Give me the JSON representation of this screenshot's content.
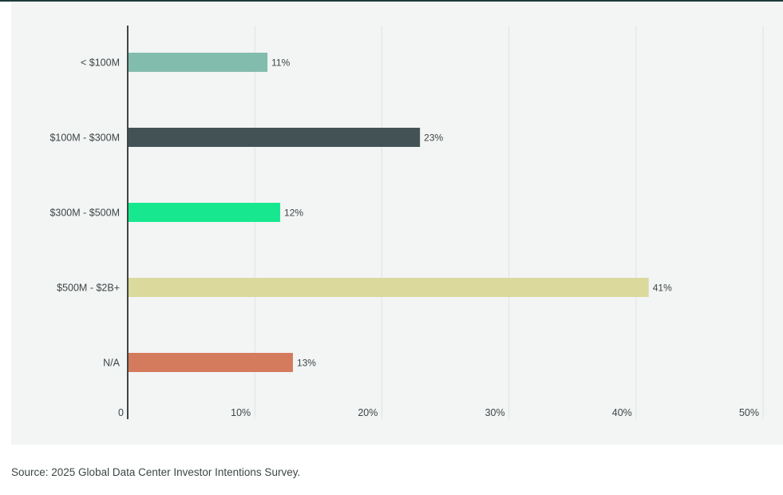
{
  "chart_data": {
    "type": "bar",
    "orientation": "horizontal",
    "categories": [
      "< $100M",
      "$100M - $300M",
      "$300M - $500M",
      "$500M - $2B+",
      "N/A"
    ],
    "values": [
      11,
      23,
      12,
      41,
      13
    ],
    "data_labels": [
      "11%",
      "23%",
      "12%",
      "41%",
      "13%"
    ],
    "colors": [
      "#82bcad",
      "#435355",
      "#17e88f",
      "#dbd99c",
      "#d37b5c"
    ],
    "xlim": [
      0,
      50
    ],
    "xticks": [
      0,
      10,
      20,
      30,
      40,
      50
    ],
    "xtick_labels": [
      "0",
      "10%",
      "20%",
      "30%",
      "40%",
      "50%"
    ],
    "grid": "vertical",
    "title": "",
    "xlabel": "",
    "ylabel": ""
  },
  "source": "Source: 2025 Global Data Center Investor Intentions Survey."
}
